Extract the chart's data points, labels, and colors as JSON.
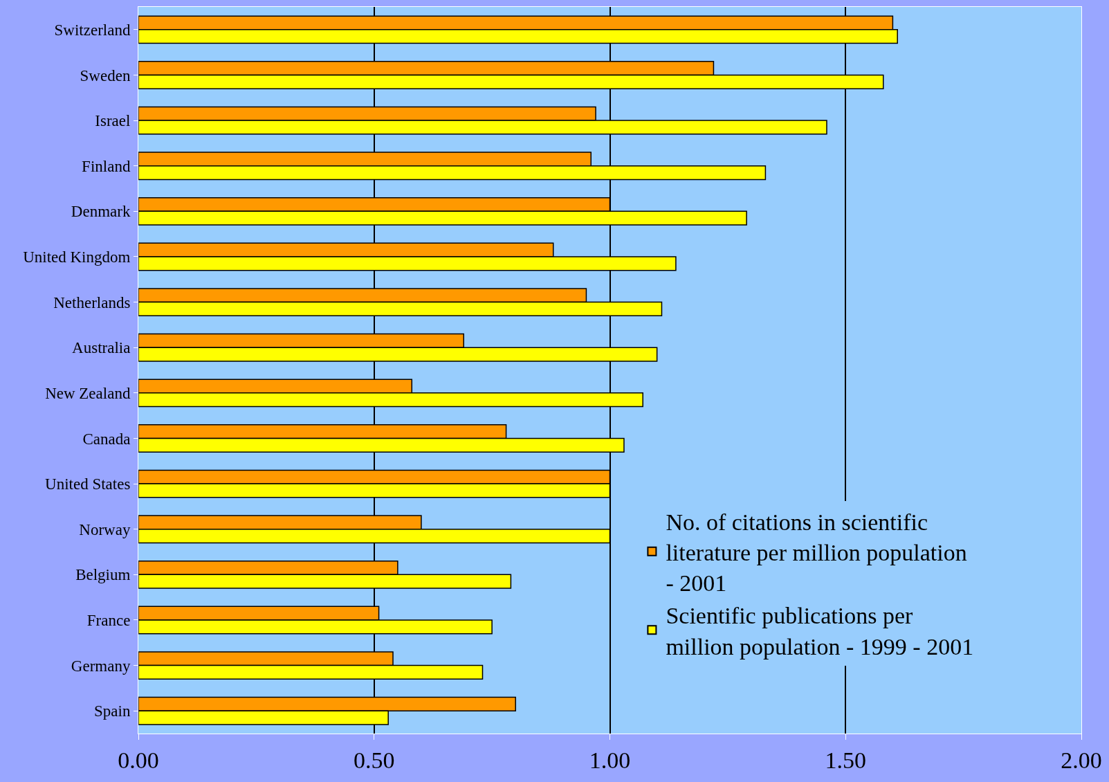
{
  "chart_data": {
    "type": "bar",
    "orientation": "horizontal",
    "categories": [
      "Switzerland",
      "Sweden",
      "Israel",
      "Finland",
      "Denmark",
      "United Kingdom",
      "Netherlands",
      "Australia",
      "New Zealand",
      "Canada",
      "United States",
      "Norway",
      "Belgium",
      "France",
      "Germany",
      "Spain"
    ],
    "series": [
      {
        "name": "No. of citations in scientific literature per million population - 2001",
        "color": "#ff9900",
        "values": [
          1.6,
          1.22,
          0.97,
          0.96,
          1.0,
          0.88,
          0.95,
          0.69,
          0.58,
          0.78,
          1.0,
          0.6,
          0.55,
          0.51,
          0.54,
          0.8
        ]
      },
      {
        "name": "Scientific publications per million population - 1999 - 2001",
        "color": "#ffff00",
        "values": [
          1.61,
          1.58,
          1.46,
          1.33,
          1.29,
          1.14,
          1.11,
          1.1,
          1.07,
          1.03,
          1.0,
          1.0,
          0.79,
          0.75,
          0.73,
          0.53
        ]
      }
    ],
    "xlim": [
      0,
      2
    ],
    "xticks": [
      {
        "value": 0,
        "label": "0.00"
      },
      {
        "value": 0.5,
        "label": "0.50"
      },
      {
        "value": 1,
        "label": "1.00"
      },
      {
        "value": 1.5,
        "label": "1.50"
      },
      {
        "value": 2,
        "label": "2.00"
      }
    ],
    "grid": "x",
    "legend": "bottom right"
  }
}
